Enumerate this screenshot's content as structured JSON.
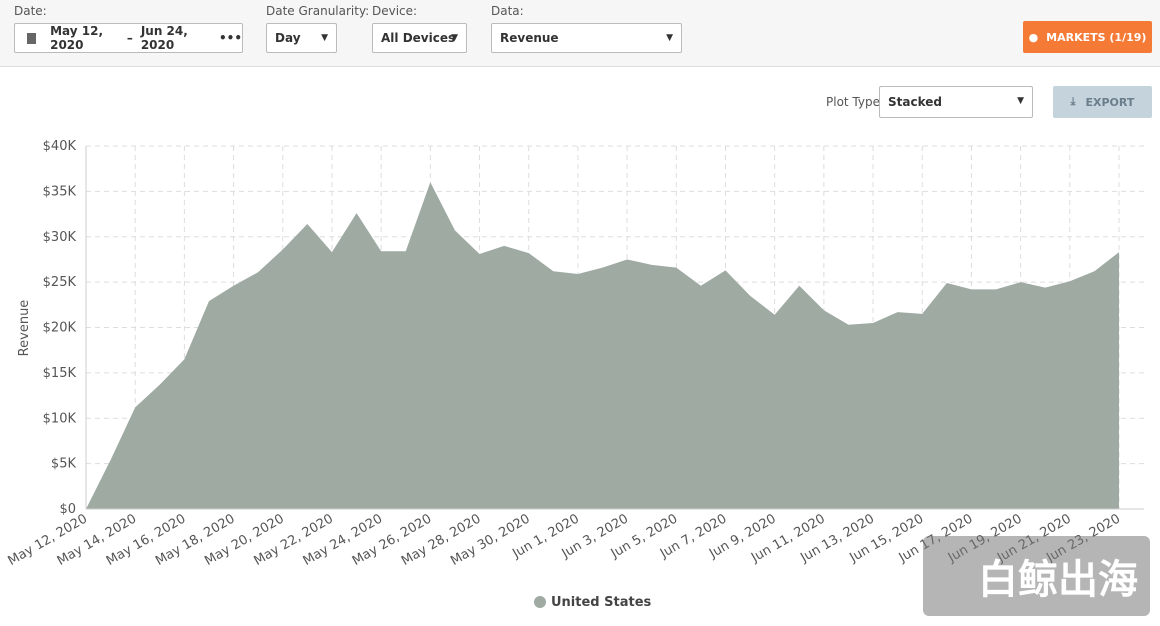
{
  "toolbar": {
    "date_label": "Date:",
    "date_start": "May 12, 2020",
    "date_sep": "–",
    "date_end": "Jun 24, 2020",
    "date_more": "•••",
    "granularity_label": "Date Granularity:",
    "granularity": "Day",
    "device_label": "Device:",
    "device": "All Devices",
    "data_label": "Data:",
    "data": "Revenue",
    "markets_button": "MARKETS (1/19)"
  },
  "plot_controls": {
    "plot_type_label": "Plot Type:",
    "plot_type": "Stacked",
    "export_button": "EXPORT"
  },
  "watermark": "白鲸出海",
  "chart_data": {
    "type": "area",
    "y_label": "Revenue",
    "categories": [
      "May 12, 2020",
      null,
      "May 14, 2020",
      null,
      "May 16, 2020",
      null,
      "May 18, 2020",
      null,
      "May 20, 2020",
      null,
      "May 22, 2020",
      null,
      "May 24, 2020",
      null,
      "May 26, 2020",
      null,
      "May 28, 2020",
      null,
      "May 30, 2020",
      null,
      "Jun 1, 2020",
      null,
      "Jun 3, 2020",
      null,
      "Jun 5, 2020",
      null,
      "Jun 7, 2020",
      null,
      "Jun 9, 2020",
      null,
      "Jun 11, 2020",
      null,
      "Jun 13, 2020",
      null,
      "Jun 15, 2020",
      null,
      "Jun 17, 2020",
      null,
      "Jun 19, 2020",
      null,
      "Jun 21, 2020",
      null,
      "Jun 23, 2020"
    ],
    "series": [
      {
        "name": "United States",
        "color": "#9eaaa2",
        "values": [
          0,
          5400,
          11200,
          13700,
          16500,
          22900,
          24600,
          26100,
          28600,
          31400,
          28300,
          32600,
          28400,
          28400,
          36000,
          30700,
          28100,
          29000,
          28200,
          26200,
          25900,
          26600,
          27500,
          26900,
          26600,
          24600,
          26300,
          23500,
          21400,
          24600,
          21900,
          20300,
          20500,
          21700,
          21500,
          24900,
          24200,
          24200,
          25000,
          24400,
          25100,
          26200,
          28300
        ]
      }
    ],
    "ylim": [
      0,
      40000
    ],
    "yticks": [
      {
        "value": 0,
        "label": "$0"
      },
      {
        "value": 5000,
        "label": "$5K"
      },
      {
        "value": 10000,
        "label": "$10K"
      },
      {
        "value": 15000,
        "label": "$15K"
      },
      {
        "value": 20000,
        "label": "$20K"
      },
      {
        "value": 25000,
        "label": "$25K"
      },
      {
        "value": 30000,
        "label": "$30K"
      },
      {
        "value": 35000,
        "label": "$35K"
      },
      {
        "value": 40000,
        "label": "$40K"
      }
    ],
    "grid": true,
    "legend": "bottom"
  }
}
